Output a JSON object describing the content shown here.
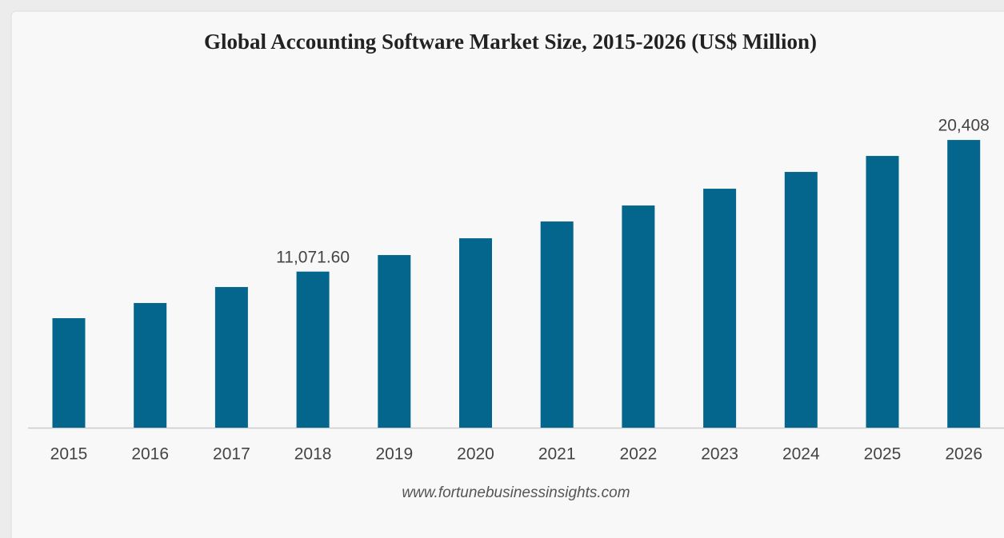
{
  "chart_data": {
    "type": "bar",
    "title": "Global Accounting Software Market Size, 2015-2026 (US$ Million)",
    "categories": [
      "2015",
      "2016",
      "2017",
      "2018",
      "2019",
      "2020",
      "2021",
      "2022",
      "2023",
      "2024",
      "2025",
      "2026"
    ],
    "values": [
      7767,
      8843,
      9977,
      11071.6,
      12245,
      13435,
      14626,
      15760,
      16950,
      18141,
      19275,
      20408
    ],
    "value_labels": [
      null,
      null,
      null,
      "11,071.60",
      null,
      null,
      null,
      null,
      null,
      null,
      null,
      "20,408"
    ],
    "color": "#05668d",
    "ylim": [
      0,
      22000
    ],
    "grid": false,
    "source": "www.fortunebusinessinsights.com"
  }
}
